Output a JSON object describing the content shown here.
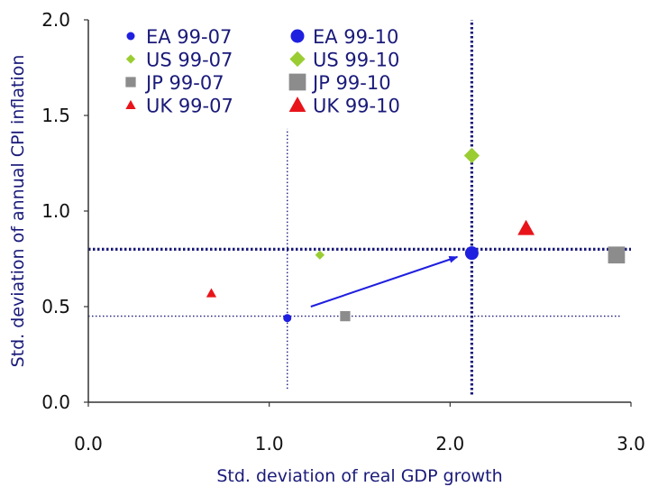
{
  "chart_data": {
    "type": "scatter",
    "xlabel": "Std. deviation of real GDP growth",
    "ylabel": "Std. deviation of annual CPI inflation",
    "xlim": [
      0.0,
      3.0
    ],
    "ylim": [
      0.0,
      2.0
    ],
    "x_ticks": [
      "0.0",
      "1.0",
      "2.0",
      "3.0"
    ],
    "y_ticks": [
      "0.0",
      "0.5",
      "1.0",
      "1.5",
      "2.0"
    ],
    "grid": false,
    "legend_position": "top-left",
    "series": [
      {
        "name": "EA 99-07",
        "marker": "circle",
        "size": "small",
        "color": "#1f1fe0",
        "points": [
          {
            "x": 1.1,
            "y": 0.44
          }
        ]
      },
      {
        "name": "EA 99-10",
        "marker": "circle",
        "size": "large",
        "color": "#1f1fe0",
        "points": [
          {
            "x": 2.12,
            "y": 0.78
          }
        ]
      },
      {
        "name": "US 99-07",
        "marker": "diamond",
        "size": "small",
        "color": "#9acd32",
        "points": [
          {
            "x": 1.28,
            "y": 0.77
          }
        ]
      },
      {
        "name": "US 99-10",
        "marker": "diamond",
        "size": "large",
        "color": "#9acd32",
        "points": [
          {
            "x": 2.12,
            "y": 1.29
          }
        ]
      },
      {
        "name": "JP 99-07",
        "marker": "square",
        "size": "small",
        "color": "#8c8c8c",
        "points": [
          {
            "x": 1.42,
            "y": 0.45
          }
        ]
      },
      {
        "name": "JP 99-10",
        "marker": "square",
        "size": "large",
        "color": "#8c8c8c",
        "points": [
          {
            "x": 2.92,
            "y": 0.77
          }
        ]
      },
      {
        "name": "UK 99-07",
        "marker": "triangle",
        "size": "small",
        "color": "#e8141a",
        "points": [
          {
            "x": 0.68,
            "y": 0.57
          }
        ]
      },
      {
        "name": "UK 99-10",
        "marker": "triangle",
        "size": "large",
        "color": "#e8141a",
        "points": [
          {
            "x": 2.42,
            "y": 0.91
          }
        ]
      }
    ],
    "reference_lines": [
      {
        "orientation": "vertical",
        "value": 1.1,
        "style": "thin-dotted",
        "range": [
          0.07,
          1.43
        ]
      },
      {
        "orientation": "horizontal",
        "value": 0.45,
        "style": "thin-dotted",
        "range": [
          0.0,
          2.95
        ]
      },
      {
        "orientation": "vertical",
        "value": 2.12,
        "style": "thick-dotted",
        "range": [
          0.04,
          2.0
        ]
      },
      {
        "orientation": "horizontal",
        "value": 0.8,
        "style": "thick-dotted",
        "range": [
          0.0,
          3.0
        ]
      }
    ],
    "arrow": {
      "from": {
        "x": 1.23,
        "y": 0.5
      },
      "to": {
        "x": 2.04,
        "y": 0.76
      },
      "color": "#1f1fe0"
    },
    "colors": {
      "axis": "#333333",
      "axis_title": "#1a1a7a",
      "reference_line": "#1a1a7a",
      "legend_text": "#1a1a7a"
    }
  }
}
